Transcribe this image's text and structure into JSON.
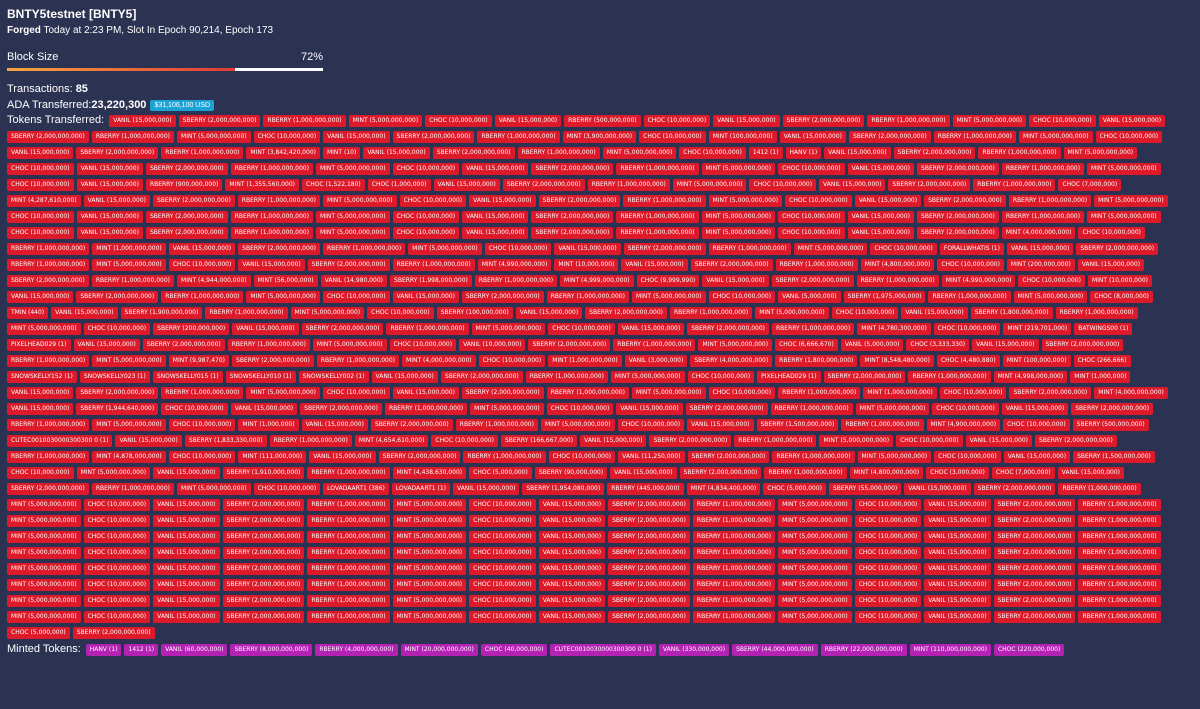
{
  "header": {
    "title": "BNTY5testnet [BNTY5]",
    "forged_label": "Forged",
    "forged_detail": " Today at 2:23 PM, Slot In Epoch 90,214, Epoch 173"
  },
  "block_size": {
    "label": "Block Size",
    "percent_text": "72%",
    "fill_fraction": 0.72
  },
  "transactions": {
    "label": "Transactions: ",
    "value": "85"
  },
  "ada": {
    "label": "ADA Transferred: ",
    "value": "23,220,300",
    "usd": "$31,106,100 USD"
  },
  "tokens_label": "Tokens Transferred:",
  "tokens": [
    "VANIL (15,000,000)",
    "SBERRY (2,000,000,000)",
    "RBERRY (1,000,000,000)",
    "MINT (5,000,000,000)",
    "CHOC (10,000,000)",
    "VANIL (15,000,000)",
    "RBERRY (500,000,000)",
    "CHOC (10,000,000)",
    "VANIL (15,000,000)",
    "SBERRY (2,000,000,000)",
    "RBERRY (1,000,000,000)",
    "MINT (5,000,000,000)",
    "CHOC (10,000,000)",
    "VANIL (15,000,000)",
    "SBERRY (2,000,000,000)",
    "RBERRY (1,000,000,000)",
    "MINT (5,000,000,000)",
    "CHOC (10,000,000)",
    "VANIL (15,000,000)",
    "SBERRY (2,000,000,000)",
    "RBERRY (1,000,000,000)",
    "MINT (3,900,000,000)",
    "CHOC (10,000,000)",
    "MINT (100,000,000)",
    "VANIL (15,000,000)",
    "SBERRY (2,000,000,000)",
    "RBERRY (1,000,000,000)",
    "MINT (5,000,000,000)",
    "CHOC (10,000,000)",
    "VANIL (15,000,000)",
    "SBERRY (2,000,000,000)",
    "RBERRY (1,000,000,000)",
    "MINT (3,842,420,000)",
    "MINT (10)",
    "VANIL (15,000,000)",
    "SBERRY (2,000,000,000)",
    "RBERRY (1,000,000,000)",
    "MINT (5,000,000,000)",
    "CHOC (10,000,000)",
    "1412 (1)",
    "HANV (1)",
    "VANIL (15,000,000)",
    "SBERRY (2,000,000,000)",
    "RBERRY (1,000,000,000)",
    "MINT (5,000,000,000)",
    "CHOC (10,000,000)",
    "VANIL (15,000,000)",
    "SBERRY (2,000,000,000)",
    "RBERRY (1,000,000,000)",
    "MINT (5,000,000,000)",
    "CHOC (10,000,000)",
    "VANIL (15,000,000)",
    "SBERRY (2,000,000,000)",
    "RBERRY (1,000,000,000)",
    "MINT (5,000,000,000)",
    "CHOC (10,000,000)",
    "VANIL (15,000,000)",
    "SBERRY (2,000,000,000)",
    "RBERRY (1,000,000,000)",
    "MINT (5,000,000,000)",
    "CHOC (10,000,000)",
    "VANIL (15,000,000)",
    "RBERRY (900,000,000)",
    "MINT (1,355,560,000)",
    "CHOC (1,522,180)",
    "CHOC (1,000,000)",
    "VANIL (15,000,000)",
    "SBERRY (2,000,000,000)",
    "RBERRY (1,000,000,000)",
    "MINT (5,000,000,000)",
    "CHOC (10,000,000)",
    "VANIL (15,000,000)",
    "SBERRY (2,000,000,000)",
    "RBERRY (1,000,000,000)",
    "CHOC (7,000,000)",
    "MINT (4,287,610,000)",
    "VANIL (15,000,000)",
    "SBERRY (2,000,000,000)",
    "RBERRY (1,000,000,000)",
    "MINT (5,000,000,000)",
    "CHOC (10,000,000)",
    "VANIL (15,000,000)",
    "SBERRY (2,000,000,000)",
    "RBERRY (1,000,000,000)",
    "MINT (5,000,000,000)",
    "CHOC (10,000,000)",
    "VANIL (15,000,000)",
    "SBERRY (2,000,000,000)",
    "RBERRY (1,000,000,000)",
    "MINT (5,000,000,000)",
    "CHOC (10,000,000)",
    "VANIL (15,000,000)",
    "SBERRY (2,000,000,000)",
    "RBERRY (1,000,000,000)",
    "MINT (5,000,000,000)",
    "CHOC (10,000,000)",
    "VANIL (15,000,000)",
    "SBERRY (2,000,000,000)",
    "RBERRY (1,000,000,000)",
    "MINT (5,000,000,000)",
    "CHOC (10,000,000)",
    "VANIL (15,000,000)",
    "SBERRY (2,000,000,000)",
    "RBERRY (1,000,000,000)",
    "MINT (5,000,000,000)",
    "CHOC (10,000,000)",
    "VANIL (15,000,000)",
    "SBERRY (2,000,000,000)",
    "RBERRY (1,000,000,000)",
    "MINT (5,000,000,000)",
    "CHOC (10,000,000)",
    "VANIL (15,000,000)",
    "SBERRY (2,000,000,000)",
    "RBERRY (1,000,000,000)",
    "MINT (5,000,000,000)",
    "CHOC (10,000,000)",
    "VANIL (15,000,000)",
    "SBERRY (2,000,000,000)",
    "MINT (4,000,000,000)",
    "CHOC (10,000,000)",
    "RBERRY (1,000,000,000)",
    "MINT (1,000,000,000)",
    "VANIL (15,000,000)",
    "SBERRY (2,000,000,000)",
    "RBERRY (1,000,000,000)",
    "MINT (5,000,000,000)",
    "CHOC (10,000,000)",
    "VANIL (15,000,000)",
    "SBERRY (2,000,000,000)",
    "RBERRY (1,000,000,000)",
    "MINT (5,000,000,000)",
    "CHOC (10,000,000)",
    "FORALLWHATIS (1)",
    "VANIL (15,000,000)",
    "SBERRY (2,000,000,000)",
    "RBERRY (1,000,000,000)",
    "MINT (5,000,000,000)",
    "CHOC (10,000,000)",
    "VANIL (15,000,000)",
    "SBERRY (2,000,000,000)",
    "RBERRY (1,000,000,000)",
    "MINT (4,990,000,000)",
    "MINT (10,000,000)",
    "VANIL (15,000,000)",
    "SBERRY (2,000,000,000)",
    "RBERRY (1,000,000,000)",
    "MINT (4,800,000,000)",
    "CHOC (10,000,000)",
    "MINT (200,000,000)",
    "VANIL (15,000,000)",
    "SBERRY (2,000,000,000)",
    "RBERRY (1,000,000,000)",
    "MINT (4,944,000,000)",
    "MINT (56,000,000)",
    "VANIL (14,980,000)",
    "SBERRY (1,998,000,000)",
    "RBERRY (1,000,000,000)",
    "MINT (4,999,000,000)",
    "CHOC (9,999,990)",
    "VANIL (15,000,000)",
    "SBERRY (2,000,000,000)",
    "RBERRY (1,000,000,000)",
    "MINT (4,990,000,000)",
    "CHOC (10,000,000)",
    "MINT (10,000,000)",
    "VANIL (15,000,000)",
    "SBERRY (2,000,000,000)",
    "RBERRY (1,000,000,000)",
    "MINT (5,000,000,000)",
    "CHOC (10,000,000)",
    "VANIL (15,000,000)",
    "SBERRY (2,000,000,000)",
    "RBERRY (1,000,000,000)",
    "MINT (5,000,000,000)",
    "CHOC (10,000,000)",
    "VANIL (5,000,000)",
    "SBERRY (1,975,000,000)",
    "RBERRY (1,000,000,000)",
    "MINT (5,000,000,000)",
    "CHOC (8,000,000)",
    "TMIN (440)",
    "VANIL (15,000,000)",
    "SBERRY (1,900,000,000)",
    "RBERRY (1,000,000,000)",
    "MINT (5,000,000,000)",
    "CHOC (10,000,000)",
    "SBERRY (100,000,000)",
    "VANIL (15,000,000)",
    "SBERRY (2,000,000,000)",
    "RBERRY (1,000,000,000)",
    "MINT (5,000,000,000)",
    "CHOC (10,000,000)",
    "VANIL (15,000,000)",
    "SBERRY (1,800,000,000)",
    "RBERRY (1,000,000,000)",
    "MINT (5,000,000,000)",
    "CHOC (10,000,000)",
    "SBERRY (200,000,000)",
    "VANIL (15,000,000)",
    "SBERRY (2,000,000,000)",
    "RBERRY (1,000,000,000)",
    "MINT (5,000,000,000)",
    "CHOC (10,000,000)",
    "VANIL (15,000,000)",
    "SBERRY (2,000,000,000)",
    "RBERRY (1,000,000,000)",
    "MINT (4,780,300,000)",
    "CHOC (10,000,000)",
    "MINT (219,701,000)",
    "BATWINGS00 (1)",
    "PIXELHEAD029 (1)",
    "VANIL (15,000,000)",
    "SBERRY (2,000,000,000)",
    "RBERRY (1,000,000,000)",
    "MINT (5,000,000,000)",
    "CHOC (10,000,000)",
    "VANIL (10,000,000)",
    "SBERRY (2,000,000,000)",
    "RBERRY (1,000,000,000)",
    "MINT (5,000,000,000)",
    "CHOC (6,666,670)",
    "VANIL (5,000,000)",
    "CHOC (3,333,330)",
    "VANIL (15,000,000)",
    "SBERRY (2,000,000,000)",
    "RBERRY (1,000,000,000)",
    "MINT (5,000,000,000)",
    "MINT (9,987,470)",
    "SBERRY (2,000,000,000)",
    "RBERRY (1,000,000,000)",
    "MINT (4,000,000,000)",
    "CHOC (10,000,000)",
    "MINT (1,000,000,000)",
    "VANIL (3,000,000)",
    "SBERRY (4,000,000,000)",
    "RBERRY (1,800,000,000)",
    "MINT (8,548,480,000)",
    "CHOC (4,480,880)",
    "MINT (100,000,000)",
    "CHOC (266,666)",
    "SNOWSKELLY152 (1)",
    "SNOWSKELLY023 (1)",
    "SNOWSKELLY015 (1)",
    "SNOWSKELLY010 (1)",
    "SNOWSKELLY002 (1)",
    "VANIL (15,000,000)",
    "SBERRY (2,000,000,000)",
    "RBERRY (1,000,000,000)",
    "MINT (5,000,000,000)",
    "CHOC (10,000,000)",
    "PIXELHEAD029 (1)",
    "SBERRY (2,000,000,000)",
    "RBERRY (1,000,000,000)",
    "MINT (4,998,000,000)",
    "MINT (1,000,000)",
    "VANIL (15,000,000)",
    "SBERRY (2,000,000,000)",
    "RBERRY (1,000,000,000)",
    "MINT (5,000,000,000)",
    "CHOC (10,000,000)",
    "VANIL (15,000,000)",
    "SBERRY (2,000,000,000)",
    "RBERRY (1,000,000,000)",
    "MINT (5,000,000,000)",
    "CHOC (10,000,000)",
    "RBERRY (1,000,000,000)",
    "MINT (1,000,000,000)",
    "CHOC (10,000,000)",
    "SBERRY (2,000,000,000)",
    "MINT (4,000,000,000)",
    "VANIL (15,000,000)",
    "SBERRY (1,944,640,000)",
    "CHOC (10,000,000)",
    "VANIL (15,000,000)",
    "SBERRY (2,000,000,000)",
    "RBERRY (1,000,000,000)",
    "MINT (5,000,000,000)",
    "CHOC (10,000,000)",
    "VANIL (15,000,000)",
    "SBERRY (2,000,000,000)",
    "RBERRY (1,000,000,000)",
    "MINT (5,000,000,000)",
    "CHOC (10,000,000)",
    "VANIL (15,000,000)",
    "SBERRY (2,000,000,000)",
    "RBERRY (1,000,000,000)",
    "MINT (5,000,000,000)",
    "CHOC (10,000,000)",
    "MINT (1,000,000)",
    "VANIL (15,000,000)",
    "SBERRY (2,000,000,000)",
    "RBERRY (1,000,000,000)",
    "MINT (5,000,000,000)",
    "CHOC (10,000,000)",
    "VANIL (15,000,000)",
    "SBERRY (1,500,000,000)",
    "RBERRY (1,000,000,000)",
    "MINT (4,900,000,000)",
    "CHOC (10,000,000)",
    "SBERRY (500,000,000)",
    "CUTEC0010030000300300 0 (1)",
    "VANIL (15,000,000)",
    "SBERRY (1,833,330,000)",
    "RBERRY (1,000,000,000)",
    "MINT (4,654,610,000)",
    "CHOC (10,000,000)",
    "SBERRY (166,667,000)",
    "VANIL (15,000,000)",
    "SBERRY (2,000,000,000)",
    "RBERRY (1,000,000,000)",
    "MINT (5,000,000,000)",
    "CHOC (10,000,000)",
    "VANIL (15,000,000)",
    "SBERRY (2,000,000,000)",
    "RBERRY (1,000,000,000)",
    "MINT (4,878,000,000)",
    "CHOC (10,000,000)",
    "MINT (111,000,000)",
    "VANIL (15,000,000)",
    "SBERRY (2,000,000,000)",
    "RBERRY (1,000,000,000)",
    "CHOC (10,000,000)",
    "VANIL (11,250,000)",
    "SBERRY (2,000,000,000)",
    "RBERRY (1,000,000,000)",
    "MINT (5,000,000,000)",
    "CHOC (10,000,000)",
    "VANIL (15,000,000)",
    "SBERRY (1,500,000,000)",
    "CHOC (10,000,000)",
    "MINT (5,000,000,000)",
    "VANIL (15,000,000)",
    "SBERRY (1,910,000,000)",
    "RBERRY (1,000,000,000)",
    "MINT (4,438,630,000)",
    "CHOC (5,000,000)",
    "SBERRY (90,000,000)",
    "VANIL (15,000,000)",
    "SBERRY (2,000,000,000)",
    "RBERRY (1,000,000,000)",
    "MINT (4,800,000,000)",
    "CHOC (3,000,000)",
    "CHOC (7,000,000)",
    "VANIL (15,000,000)",
    "SBERRY (2,000,000,000)",
    "RBERRY (1,000,000,000)",
    "MINT (5,000,000,000)",
    "CHOC (10,000,000)",
    "LOVADAART1 (386)",
    "LOVADAART1 (1)",
    "VANIL (15,000,000)",
    "SBERRY (1,954,080,000)",
    "RBERRY (445,000,000)",
    "MINT (4,834,400,000)",
    "CHOC (5,000,000)",
    "SBERRY (55,000,000)",
    "VANIL (15,000,000)",
    "SBERRY (2,000,000,000)",
    "RBERRY (1,000,000,000)",
    "MINT (5,000,000,000)",
    "CHOC (10,000,000)",
    "VANIL (15,000,000)",
    "SBERRY (2,000,000,000)",
    "RBERRY (1,000,000,000)",
    "MINT (5,000,000,000)",
    "CHOC (10,000,000)",
    "VANIL (15,000,000)",
    "SBERRY (2,000,000,000)",
    "RBERRY (1,000,000,000)",
    "MINT (5,000,000,000)",
    "CHOC (10,000,000)",
    "VANIL (15,000,000)",
    "SBERRY (2,000,000,000)",
    "RBERRY (1,000,000,000)",
    "MINT (5,000,000,000)",
    "CHOC (10,000,000)",
    "VANIL (15,000,000)",
    "SBERRY (2,000,000,000)",
    "RBERRY (1,000,000,000)",
    "MINT (5,000,000,000)",
    "CHOC (10,000,000)",
    "VANIL (15,000,000)",
    "SBERRY (2,000,000,000)",
    "RBERRY (1,000,000,000)",
    "MINT (5,000,000,000)",
    "CHOC (10,000,000)",
    "VANIL (15,000,000)",
    "SBERRY (2,000,000,000)",
    "RBERRY (1,000,000,000)",
    "MINT (5,000,000,000)",
    "CHOC (10,000,000)",
    "VANIL (15,000,000)",
    "SBERRY (2,000,000,000)",
    "RBERRY (1,000,000,000)",
    "MINT (5,000,000,000)",
    "CHOC (10,000,000)",
    "VANIL (15,000,000)",
    "SBERRY (2,000,000,000)",
    "RBERRY (1,000,000,000)",
    "MINT (5,000,000,000)",
    "CHOC (10,000,000)",
    "VANIL (15,000,000)",
    "SBERRY (2,000,000,000)",
    "RBERRY (1,000,000,000)",
    "MINT (5,000,000,000)",
    "CHOC (10,000,000)",
    "VANIL (15,000,000)",
    "SBERRY (2,000,000,000)",
    "RBERRY (1,000,000,000)",
    "MINT (5,000,000,000)",
    "CHOC (10,000,000)",
    "VANIL (15,000,000)",
    "SBERRY (2,000,000,000)",
    "RBERRY (1,000,000,000)",
    "MINT (5,000,000,000)",
    "CHOC (10,000,000)",
    "VANIL (15,000,000)",
    "SBERRY (2,000,000,000)",
    "RBERRY (1,000,000,000)",
    "MINT (5,000,000,000)",
    "CHOC (10,000,000)",
    "VANIL (15,000,000)",
    "SBERRY (2,000,000,000)",
    "RBERRY (1,000,000,000)",
    "MINT (5,000,000,000)",
    "CHOC (10,000,000)",
    "VANIL (15,000,000)",
    "SBERRY (2,000,000,000)",
    "RBERRY (1,000,000,000)",
    "MINT (5,000,000,000)",
    "CHOC (10,000,000)",
    "VANIL (15,000,000)",
    "SBERRY (2,000,000,000)",
    "RBERRY (1,000,000,000)",
    "MINT (5,000,000,000)",
    "CHOC (10,000,000)",
    "VANIL (15,000,000)",
    "SBERRY (2,000,000,000)",
    "RBERRY (1,000,000,000)",
    "MINT (5,000,000,000)",
    "CHOC (10,000,000)",
    "VANIL (15,000,000)",
    "SBERRY (2,000,000,000)",
    "RBERRY (1,000,000,000)",
    "MINT (5,000,000,000)",
    "CHOC (10,000,000)",
    "VANIL (15,000,000)",
    "SBERRY (2,000,000,000)",
    "RBERRY (1,000,000,000)",
    "MINT (5,000,000,000)",
    "CHOC (10,000,000)",
    "VANIL (15,000,000)",
    "SBERRY (2,000,000,000)",
    "RBERRY (1,000,000,000)",
    "MINT (5,000,000,000)",
    "CHOC (10,000,000)",
    "VANIL (15,000,000)",
    "SBERRY (2,000,000,000)",
    "RBERRY (1,000,000,000)",
    "MINT (5,000,000,000)",
    "CHOC (10,000,000)",
    "VANIL (15,000,000)",
    "SBERRY (2,000,000,000)",
    "RBERRY (1,000,000,000)",
    "MINT (5,000,000,000)",
    "CHOC (10,000,000)",
    "VANIL (15,000,000)",
    "SBERRY (2,000,000,000)",
    "RBERRY (1,000,000,000)",
    "MINT (5,000,000,000)",
    "CHOC (10,000,000)",
    "VANIL (15,000,000)",
    "SBERRY (2,000,000,000)",
    "RBERRY (1,000,000,000)",
    "MINT (5,000,000,000)",
    "CHOC (10,000,000)",
    "VANIL (15,000,000)",
    "SBERRY (2,000,000,000)",
    "RBERRY (1,000,000,000)",
    "CHOC (5,000,000)",
    "SBERRY (2,000,000,000)"
  ],
  "minted_label": "Minted Tokens:",
  "minted": [
    "HANV (1)",
    "1412 (1)",
    "VANIL (60,000,000)",
    "SBERRY (8,000,000,000)",
    "RBERRY (4,000,000,000)",
    "MINT (20,000,000,000)",
    "CHOC (40,000,000)",
    "CUTEC0010030000300300 0 (1)",
    "VANIL (330,000,000)",
    "SBERRY (44,000,000,000)",
    "RBERRY (22,000,000,000)",
    "MINT (110,000,000,000)",
    "CHOC (220,000,000)"
  ]
}
